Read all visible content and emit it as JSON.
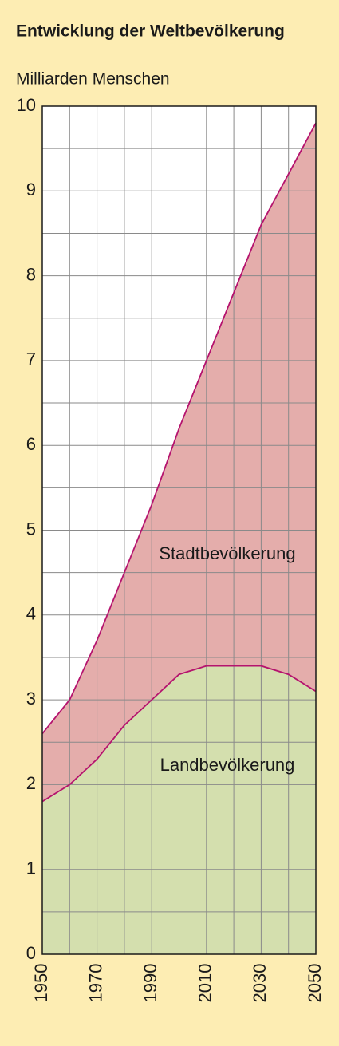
{
  "chart_data": {
    "type": "stacked_area",
    "title": "Entwicklung der Weltbevölkerung",
    "y_label": "Milliarden Menschen",
    "x": [
      1950,
      1960,
      1970,
      1980,
      1990,
      2000,
      2010,
      2020,
      2030,
      2040,
      2050
    ],
    "series": [
      {
        "name": "Landbevölkerung",
        "color": "#d4dfae",
        "values": [
          1.8,
          2.0,
          2.3,
          2.7,
          3.0,
          3.3,
          3.4,
          3.4,
          3.4,
          3.3,
          3.1
        ]
      },
      {
        "name": "Stadtbevölkerung",
        "color": "#e4adab",
        "values": [
          0.8,
          1.0,
          1.4,
          1.8,
          2.3,
          2.9,
          3.6,
          4.4,
          5.2,
          5.9,
          6.7
        ]
      }
    ],
    "line_color": "#b5136e",
    "xlim": [
      1950,
      2050
    ],
    "xticks": [
      1950,
      1970,
      1990,
      2010,
      2030,
      2050
    ],
    "ylim": [
      0,
      10
    ],
    "yticks": [
      0,
      1,
      2,
      3,
      4,
      5,
      6,
      7,
      8,
      9,
      10
    ],
    "y_minor_ticks": [
      0.5,
      1.5,
      2.5,
      3.5,
      4.5,
      5.5,
      6.5,
      7.5,
      8.5,
      9.5
    ],
    "grid": true
  }
}
